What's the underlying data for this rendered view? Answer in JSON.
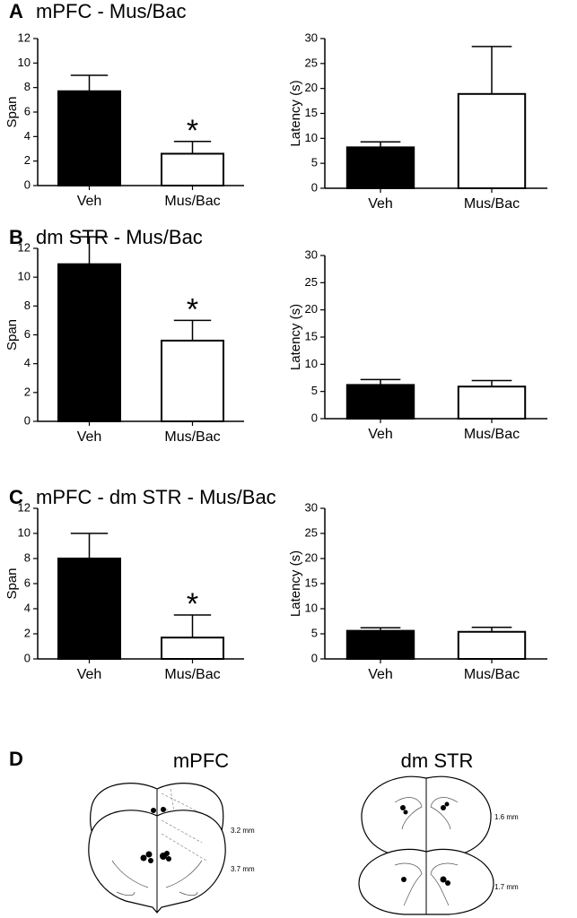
{
  "chart_data": [
    {
      "type": "bar",
      "panel_label": "A",
      "title": "mPFC - Mus/Bac",
      "ylabel": "Span",
      "categories": [
        "Veh",
        "Mus/Bac"
      ],
      "values": [
        7.7,
        2.6
      ],
      "errors": [
        1.3,
        1.0
      ],
      "colors": [
        "#000000",
        "#ffffff"
      ],
      "ylim": [
        0,
        12
      ],
      "yticks": [
        0,
        2,
        4,
        6,
        8,
        10,
        12
      ],
      "annotation": "*"
    },
    {
      "type": "bar",
      "ylabel": "Latency (s)",
      "categories": [
        "Veh",
        "Mus/Bac"
      ],
      "values": [
        8.2,
        18.9
      ],
      "errors": [
        1.1,
        9.5
      ],
      "colors": [
        "#000000",
        "#ffffff"
      ],
      "ylim": [
        0,
        30
      ],
      "yticks": [
        0,
        5,
        10,
        15,
        20,
        25,
        30
      ]
    },
    {
      "type": "bar",
      "panel_label": "B",
      "title": "dm STR - Mus/Bac",
      "ylabel": "Span",
      "categories": [
        "Veh",
        "Mus/Bac"
      ],
      "values": [
        10.9,
        5.6
      ],
      "errors": [
        1.9,
        1.4
      ],
      "colors": [
        "#000000",
        "#ffffff"
      ],
      "ylim": [
        0,
        12
      ],
      "yticks": [
        0,
        2,
        4,
        6,
        8,
        10,
        12
      ],
      "annotation": "*"
    },
    {
      "type": "bar",
      "ylabel": "Latency (s)",
      "categories": [
        "Veh",
        "Mus/Bac"
      ],
      "values": [
        6.2,
        5.9
      ],
      "errors": [
        1.0,
        1.1
      ],
      "colors": [
        "#000000",
        "#ffffff"
      ],
      "ylim": [
        0,
        30
      ],
      "yticks": [
        0,
        5,
        10,
        15,
        20,
        25,
        30
      ]
    },
    {
      "type": "bar",
      "panel_label": "C",
      "title": "mPFC - dm STR - Mus/Bac",
      "ylabel": "Span",
      "categories": [
        "Veh",
        "Mus/Bac"
      ],
      "values": [
        8.0,
        1.7
      ],
      "errors": [
        2.0,
        1.8
      ],
      "colors": [
        "#000000",
        "#ffffff"
      ],
      "ylim": [
        0,
        12
      ],
      "yticks": [
        0,
        2,
        4,
        6,
        8,
        10,
        12
      ],
      "annotation": "*"
    },
    {
      "type": "bar",
      "ylabel": "Latency (s)",
      "categories": [
        "Veh",
        "Mus/Bac"
      ],
      "values": [
        5.6,
        5.4
      ],
      "errors": [
        0.6,
        0.9
      ],
      "colors": [
        "#000000",
        "#ffffff"
      ],
      "ylim": [
        0,
        30
      ],
      "yticks": [
        0,
        5,
        10,
        15,
        20,
        25,
        30
      ]
    }
  ],
  "panel_d": {
    "label": "D",
    "sections": [
      {
        "title": "mPFC",
        "levels": [
          "3.2 mm",
          "3.7 mm"
        ]
      },
      {
        "title": "dm STR",
        "levels": [
          "1.6 mm",
          "1.7 mm"
        ]
      }
    ]
  }
}
